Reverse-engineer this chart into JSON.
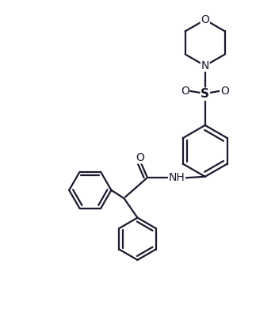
{
  "bg_color": "#ffffff",
  "line_color": "#1a1a2e",
  "line_width": 1.6,
  "figsize": [
    3.47,
    3.91
  ],
  "dpi": 100,
  "xlim": [
    0,
    10
  ],
  "ylim": [
    0,
    11.3
  ]
}
